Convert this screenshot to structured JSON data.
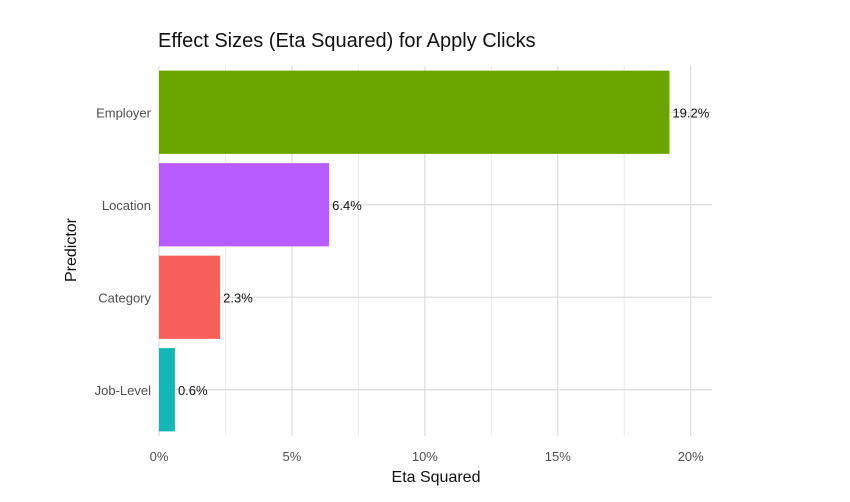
{
  "chart_data": {
    "type": "bar",
    "orientation": "horizontal",
    "title": "Effect Sizes (Eta Squared) for Apply Clicks",
    "xlabel": "Eta Squared",
    "ylabel": "Predictor",
    "categories": [
      "Employer",
      "Location",
      "Category",
      "Job-Level"
    ],
    "values": [
      19.2,
      6.4,
      2.3,
      0.6
    ],
    "data_labels": [
      "19.2%",
      "6.4%",
      "2.3%",
      "0.6%"
    ],
    "colors": [
      "#6aa500",
      "#b95cff",
      "#f8615b",
      "#14b6b8"
    ],
    "xlim": [
      0,
      20.8
    ],
    "x_ticks": [
      0,
      5,
      10,
      15,
      20
    ],
    "x_tick_labels": [
      "0%",
      "5%",
      "10%",
      "15%",
      "20%"
    ],
    "grid": true,
    "legend": "none"
  }
}
